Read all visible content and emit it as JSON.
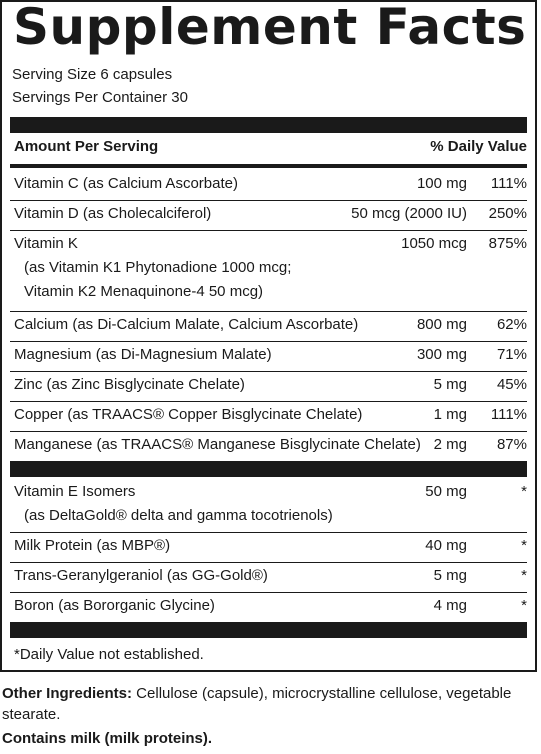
{
  "title": "Supplement Facts",
  "serving": {
    "size": "Serving Size 6 capsules",
    "per_container": "Servings Per Container 30"
  },
  "header": {
    "amount": "Amount Per Serving",
    "daily_value": "% Daily Value"
  },
  "rows": [
    {
      "name": "Vitamin C (as Calcium Ascorbate)",
      "amount": "100 mg",
      "dv": "111%"
    },
    {
      "name": "Vitamin D (as Cholecalciferol)",
      "amount": "50 mcg (2000 IU)",
      "dv": "250%"
    },
    {
      "name": "Vitamin K",
      "sub1": "(as Vitamin K1 Phytonadione 1000 mcg;",
      "sub2": "Vitamin K2 Menaquinone-4 50 mcg)",
      "amount": "1050 mcg",
      "dv": "875%"
    },
    {
      "name": "Calcium (as Di-Calcium Malate, Calcium Ascorbate)",
      "amount": "800 mg",
      "dv": "62%"
    },
    {
      "name": "Magnesium (as Di-Magnesium Malate)",
      "amount": "300 mg",
      "dv": "71%"
    },
    {
      "name": "Zinc (as Zinc Bisglycinate Chelate)",
      "amount": "5 mg",
      "dv": "45%"
    },
    {
      "name": "Copper (as TRAACS® Copper Bisglycinate Chelate)",
      "amount": "1 mg",
      "dv": "111%"
    },
    {
      "name": "Manganese (as TRAACS® Manganese Bisglycinate Chelate)",
      "amount": "2 mg",
      "dv": "87%"
    }
  ],
  "rows2": [
    {
      "name": "Vitamin E Isomers",
      "sub1": "(as DeltaGold® delta and gamma tocotrienols)",
      "amount": "50 mg",
      "dv": "*"
    },
    {
      "name": "Milk Protein (as MBP®)",
      "amount": "40 mg",
      "dv": "*"
    },
    {
      "name": "Trans-Geranylgeraniol (as GG-Gold®)",
      "amount": "5 mg",
      "dv": "*"
    },
    {
      "name": "Boron (as Bororganic Glycine)",
      "amount": "4 mg",
      "dv": "*"
    }
  ],
  "footnote": "*Daily Value not established.",
  "ingredients": {
    "label": "Other Ingredients:",
    "text": " Cellulose (capsule), microcrystalline cellulose, vegetable stearate."
  },
  "contains": "Contains milk (milk proteins)."
}
